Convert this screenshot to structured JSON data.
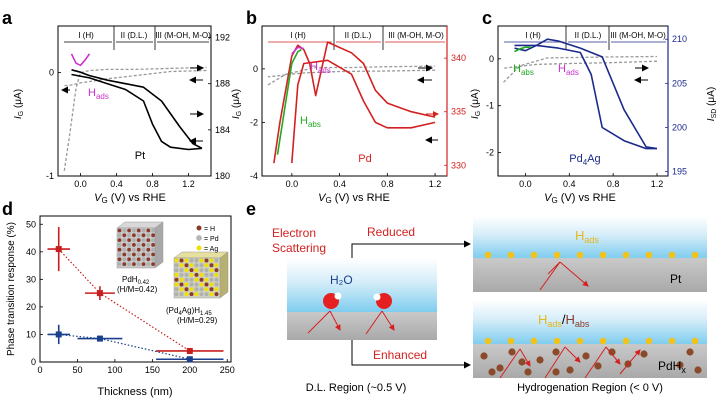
{
  "panel_letters": [
    "a",
    "b",
    "c",
    "d",
    "e"
  ],
  "regions": {
    "h": "I (H)",
    "dl": "II (D.L.)",
    "moh": "III (M-OH, M-O)"
  },
  "axis_labels": {
    "ig": "I",
    "ig_sub": "G",
    "ig_unit": " (μA)",
    "isd": "I",
    "isd_sub": "SD",
    "isd_unit": " (μA)",
    "vg": "V",
    "vg_sub": "G",
    "vg_unit": " (V) vs RHE"
  },
  "chart_data": [
    {
      "type": "line",
      "panel": "a",
      "material": "Pt",
      "x_ticks": [
        "0.0",
        "0.4",
        "0.8",
        "1.2"
      ],
      "y_left_ticks": [
        "-1",
        "0"
      ],
      "y_right_ticks": [
        "180",
        "184",
        "188",
        "192"
      ],
      "annotation": {
        "main": "H",
        "sub": "ads"
      },
      "xlim": [
        -0.25,
        1.45
      ],
      "ylim_left": [
        -1.0,
        0.45
      ],
      "ylim_right": [
        180,
        193
      ],
      "series": [
        {
          "axis": "left",
          "style": "dashed",
          "color": "#999999",
          "x": [
            -0.18,
            -0.12,
            -0.05,
            0.0,
            0.1,
            0.3,
            0.6,
            1.0,
            1.4
          ],
          "y": [
            -0.95,
            -0.6,
            -0.15,
            0.0,
            0.02,
            0.03,
            0.03,
            0.04,
            0.05
          ]
        },
        {
          "axis": "left",
          "style": "dashed",
          "color": "#999999",
          "x": [
            1.4,
            1.0,
            0.6,
            0.3,
            0.0,
            -0.1,
            -0.2
          ],
          "y": [
            0.02,
            0.01,
            -0.03,
            -0.06,
            -0.1,
            -0.12,
            -0.13
          ]
        },
        {
          "axis": "right",
          "style": "solid",
          "color": "#000000",
          "x": [
            -0.1,
            0.0,
            0.1,
            0.3,
            0.5,
            0.7,
            0.9,
            1.1,
            1.25,
            1.35
          ],
          "y": [
            189.2,
            189.0,
            188.7,
            188.3,
            188.0,
            187.7,
            186.5,
            184.3,
            182.8,
            182.4
          ]
        },
        {
          "axis": "right",
          "style": "solid",
          "color": "#000000",
          "x": [
            1.35,
            1.2,
            1.0,
            0.9,
            0.8,
            0.7,
            0.5,
            0.3,
            0.1,
            -0.1
          ],
          "y": [
            182.4,
            182.3,
            182.5,
            183.0,
            184.5,
            186.5,
            187.5,
            188.0,
            188.5,
            188.8
          ]
        },
        {
          "axis": "left",
          "style": "solid",
          "color": "#cc33cc",
          "x": [
            0.1,
            0.05,
            0.0,
            -0.05,
            -0.1
          ],
          "y": [
            0.18,
            0.12,
            0.07,
            0.09,
            0.18
          ]
        }
      ]
    },
    {
      "type": "line",
      "panel": "b",
      "material": "Pd",
      "x_ticks": [
        "0.0",
        "0.4",
        "0.8",
        "1.2"
      ],
      "y_left_ticks": [
        "-4",
        "-2",
        "0"
      ],
      "y_right_ticks": [
        "330",
        "335",
        "340"
      ],
      "annotations": [
        {
          "main": "H",
          "sub": "ads"
        },
        {
          "main": "H",
          "sub": "abs"
        }
      ],
      "xlim": [
        -0.25,
        1.3
      ],
      "ylim_left": [
        -4.0,
        1.6
      ],
      "ylim_right": [
        329,
        343
      ],
      "series": [
        {
          "axis": "left",
          "style": "dashed",
          "color": "#999999",
          "x": [
            -0.2,
            -0.05,
            0.2,
            0.5,
            0.8,
            1.2
          ],
          "y": [
            -0.6,
            -0.2,
            0.05,
            0.05,
            0.08,
            0.1
          ]
        },
        {
          "axis": "left",
          "style": "dashed",
          "color": "#999999",
          "x": [
            1.2,
            0.8,
            0.4,
            0.1,
            -0.2
          ],
          "y": [
            -0.05,
            -0.08,
            -0.1,
            -0.15,
            -0.3
          ]
        },
        {
          "axis": "right",
          "style": "solid",
          "color": "#d42020",
          "x": [
            -0.15,
            -0.1,
            0.0,
            0.05,
            0.1,
            0.15,
            0.2,
            0.3,
            0.5,
            0.6,
            0.7,
            0.8,
            1.0,
            1.2
          ],
          "y": [
            330.2,
            334.0,
            340.2,
            341.2,
            340.8,
            339.5,
            336.5,
            341.5,
            340.5,
            339.5,
            337.0,
            335.8,
            335.0,
            334.5
          ]
        },
        {
          "axis": "right",
          "style": "solid",
          "color": "#d42020",
          "x": [
            1.2,
            1.0,
            0.8,
            0.7,
            0.6,
            0.5,
            0.3,
            0.1,
            0.05,
            0.0
          ],
          "y": [
            334.0,
            333.5,
            333.5,
            334.0,
            336.0,
            338.5,
            339.8,
            339.5,
            337.5,
            330.2
          ]
        },
        {
          "axis": "right",
          "style": "solid",
          "color": "#22aa22",
          "x": [
            -0.12,
            -0.05,
            0.0,
            0.05,
            0.08
          ],
          "y": [
            331.0,
            336.0,
            339.5,
            340.6,
            340.8
          ]
        },
        {
          "axis": "right",
          "style": "solid",
          "color": "#cc33cc",
          "x": [
            0.0,
            0.05,
            0.1
          ],
          "y": [
            340.4,
            341.0,
            340.9
          ]
        }
      ]
    },
    {
      "type": "line",
      "panel": "c",
      "material": "Pd",
      "material_sub": "4",
      "material_tail": "Ag",
      "x_ticks": [
        "0.0",
        "0.4",
        "0.8",
        "1.2"
      ],
      "y_left_ticks": [
        "-2",
        "-1",
        "0"
      ],
      "y_right_ticks": [
        "195",
        "200",
        "205",
        "210"
      ],
      "annotations": [
        {
          "main": "H",
          "sub": "abs"
        },
        {
          "main": "H",
          "sub": "ads"
        }
      ],
      "xlim": [
        -0.25,
        1.3
      ],
      "ylim_left": [
        -2.5,
        0.7
      ],
      "ylim_right": [
        194.5,
        211.5
      ],
      "series": [
        {
          "axis": "left",
          "style": "dashed",
          "color": "#999999",
          "x": [
            -0.2,
            -0.05,
            0.2,
            0.5,
            0.8,
            1.2
          ],
          "y": [
            -0.5,
            -0.15,
            0.02,
            0.03,
            0.04,
            0.05
          ]
        },
        {
          "axis": "left",
          "style": "dashed",
          "color": "#999999",
          "x": [
            1.2,
            0.8,
            0.4,
            0.1,
            -0.2
          ],
          "y": [
            -0.05,
            -0.08,
            -0.1,
            -0.12,
            -0.2
          ]
        },
        {
          "axis": "right",
          "style": "solid",
          "color": "#1c2a8c",
          "x": [
            -0.1,
            0.0,
            0.1,
            0.2,
            0.3,
            0.5,
            0.7,
            0.9,
            1.1,
            1.2
          ],
          "y": [
            209.0,
            208.7,
            209.3,
            210.0,
            209.8,
            209.0,
            208.0,
            202.0,
            197.8,
            197.6
          ]
        },
        {
          "axis": "right",
          "style": "solid",
          "color": "#1c2a8c",
          "x": [
            1.2,
            1.1,
            0.9,
            0.7,
            0.6,
            0.5,
            0.3,
            0.1,
            -0.1
          ],
          "y": [
            197.6,
            197.6,
            198.5,
            200.0,
            206.0,
            208.5,
            209.0,
            209.3,
            209.3
          ]
        },
        {
          "axis": "right",
          "style": "solid",
          "color": "#22aa22",
          "x": [
            -0.1,
            -0.05,
            0.0,
            0.05
          ],
          "y": [
            208.6,
            208.9,
            209.1,
            209.1
          ]
        }
      ]
    },
    {
      "type": "scatter",
      "panel": "d",
      "xlabel": "Thickness (nm)",
      "ylabel": "Phase transition response (%)",
      "x_ticks": [
        "0",
        "50",
        "100",
        "150",
        "200",
        "250"
      ],
      "y_ticks": [
        "0",
        "10",
        "20",
        "30",
        "40",
        "50"
      ],
      "xlim": [
        0,
        255
      ],
      "ylim": [
        0,
        53
      ],
      "legend": [
        "= H",
        "= Pd",
        "= Ag"
      ],
      "legend_colors": [
        "#8b3a2a",
        "#b8b8b8",
        "#f0e000"
      ],
      "image_labels": {
        "pdh_main": "PdH",
        "pdh_sub": "0.42",
        "pdh_ratio": "(H/M=0.42)",
        "alloy_a": "(Pd",
        "alloy_b": "4",
        "alloy_c": "Ag)H",
        "alloy_d": "1.45",
        "alloy_ratio": "(H/M=0.29)"
      },
      "series": [
        {
          "color": "#c81e1e",
          "marker": "square",
          "x": [
            25,
            80,
            200
          ],
          "y": [
            41,
            25,
            4
          ],
          "xerr": [
            15,
            20,
            45
          ],
          "yerr": [
            8,
            2.5,
            1
          ]
        },
        {
          "color": "#1a3f8c",
          "marker": "square",
          "x": [
            25,
            80,
            200
          ],
          "y": [
            10,
            8.5,
            1
          ],
          "xerr": [
            15,
            30,
            45
          ],
          "yerr": [
            3.5,
            1,
            0.5
          ]
        }
      ]
    }
  ],
  "schematic": {
    "left_title_1": "Electron",
    "left_title_2": "Scattering",
    "reduced": "Reduced",
    "enhanced": "Enhanced",
    "water": "H₂O",
    "dl_region": "D.L. Region (~0.5 V)",
    "hydro_region": "Hydrogenation Region (< 0 V)",
    "pt": "Pt",
    "pdhx_main": "PdH",
    "pdhx_sub": "x",
    "hads_main": "H",
    "hads_sub": "ads",
    "habs_main": "H",
    "habs_sub": "abs",
    "slash": "/"
  }
}
